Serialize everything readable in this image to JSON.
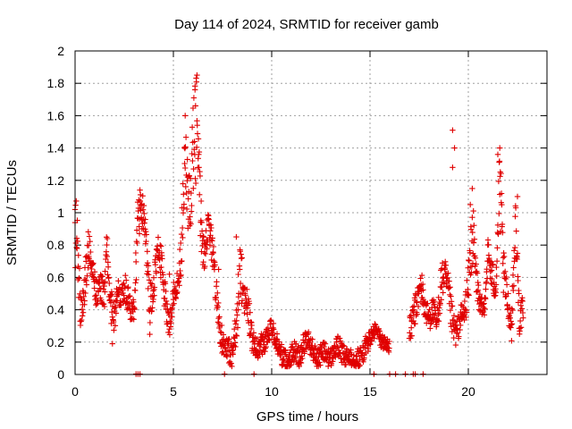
{
  "chart_data": {
    "type": "scatter",
    "title": "Day 114 of 2024, SRMTID for receiver gamb",
    "xlabel": "GPS time / hours",
    "ylabel": "SRMTID / TECUs",
    "xlim": [
      0,
      24
    ],
    "ylim": [
      0,
      2
    ],
    "x_ticks": [
      0,
      5,
      10,
      15,
      20
    ],
    "x_tick_labels": [
      "0",
      "5",
      "10",
      "15",
      "20"
    ],
    "y_ticks": [
      0,
      0.2,
      0.4,
      0.6,
      0.8,
      1,
      1.2,
      1.4,
      1.6,
      1.8,
      2
    ],
    "y_tick_labels": [
      "0",
      "0.2",
      "0.4",
      "0.6",
      "0.8",
      "1",
      "1.2",
      "1.4",
      "1.6",
      "1.8",
      "2"
    ],
    "grid": true,
    "marker": "+",
    "color": "#e00000",
    "series": [
      {
        "name": "SRMTID",
        "envelope": [
          [
            0.0,
            0.9,
            0.15
          ],
          [
            0.1,
            0.85,
            0.12
          ],
          [
            0.3,
            0.35,
            0.08
          ],
          [
            0.5,
            0.55,
            0.08
          ],
          [
            0.7,
            0.82,
            0.06
          ],
          [
            0.9,
            0.62,
            0.06
          ],
          [
            1.1,
            0.5,
            0.07
          ],
          [
            1.3,
            0.55,
            0.06
          ],
          [
            1.5,
            0.48,
            0.06
          ],
          [
            1.6,
            0.8,
            0.08
          ],
          [
            1.8,
            0.42,
            0.07
          ],
          [
            2.0,
            0.38,
            0.07
          ],
          [
            2.2,
            0.5,
            0.06
          ],
          [
            2.5,
            0.55,
            0.06
          ],
          [
            2.8,
            0.42,
            0.05
          ],
          [
            3.0,
            0.4,
            0.04
          ],
          [
            3.2,
            0.95,
            0.12
          ],
          [
            3.4,
            1.05,
            0.06
          ],
          [
            3.6,
            0.85,
            0.07
          ],
          [
            3.8,
            0.4,
            0.1
          ],
          [
            4.0,
            0.55,
            0.06
          ],
          [
            4.2,
            0.75,
            0.07
          ],
          [
            4.4,
            0.7,
            0.07
          ],
          [
            4.6,
            0.45,
            0.06
          ],
          [
            4.8,
            0.3,
            0.05
          ],
          [
            5.0,
            0.5,
            0.05
          ],
          [
            5.2,
            0.55,
            0.05
          ],
          [
            5.4,
            0.75,
            0.08
          ],
          [
            5.6,
            1.35,
            0.15
          ],
          [
            5.8,
            1.0,
            0.15
          ],
          [
            6.0,
            1.3,
            0.25
          ],
          [
            6.2,
            1.55,
            0.2
          ],
          [
            6.4,
            0.9,
            0.12
          ],
          [
            6.6,
            0.75,
            0.07
          ],
          [
            6.8,
            0.95,
            0.05
          ],
          [
            7.0,
            0.75,
            0.08
          ],
          [
            7.2,
            0.5,
            0.07
          ],
          [
            7.4,
            0.25,
            0.06
          ],
          [
            7.6,
            0.15,
            0.05
          ],
          [
            7.8,
            0.15,
            0.05
          ],
          [
            8.0,
            0.12,
            0.05
          ],
          [
            8.2,
            0.3,
            0.07
          ],
          [
            8.4,
            0.65,
            0.12
          ],
          [
            8.6,
            0.48,
            0.06
          ],
          [
            8.8,
            0.4,
            0.07
          ],
          [
            9.0,
            0.22,
            0.06
          ],
          [
            9.2,
            0.15,
            0.04
          ],
          [
            9.4,
            0.18,
            0.04
          ],
          [
            9.6,
            0.2,
            0.05
          ],
          [
            9.8,
            0.25,
            0.04
          ],
          [
            10.0,
            0.28,
            0.04
          ],
          [
            10.2,
            0.22,
            0.04
          ],
          [
            10.4,
            0.15,
            0.04
          ],
          [
            10.6,
            0.1,
            0.04
          ],
          [
            10.8,
            0.08,
            0.04
          ],
          [
            11.0,
            0.12,
            0.04
          ],
          [
            11.2,
            0.15,
            0.04
          ],
          [
            11.4,
            0.1,
            0.04
          ],
          [
            11.6,
            0.18,
            0.05
          ],
          [
            11.8,
            0.22,
            0.04
          ],
          [
            12.0,
            0.18,
            0.04
          ],
          [
            12.2,
            0.12,
            0.04
          ],
          [
            12.4,
            0.1,
            0.04
          ],
          [
            12.6,
            0.15,
            0.04
          ],
          [
            12.8,
            0.12,
            0.04
          ],
          [
            13.0,
            0.1,
            0.04
          ],
          [
            13.2,
            0.15,
            0.04
          ],
          [
            13.4,
            0.18,
            0.04
          ],
          [
            13.6,
            0.12,
            0.04
          ],
          [
            13.8,
            0.1,
            0.04
          ],
          [
            14.0,
            0.12,
            0.04
          ],
          [
            14.2,
            0.1,
            0.04
          ],
          [
            14.4,
            0.1,
            0.04
          ],
          [
            14.6,
            0.12,
            0.04
          ],
          [
            14.8,
            0.18,
            0.04
          ],
          [
            15.3,
            0.28,
            0.03
          ],
          [
            15.6,
            0.2,
            0.03
          ],
          [
            16.0,
            0.18,
            0.03
          ],
          [
            17.0,
            0.25,
            0.06
          ],
          [
            17.2,
            0.35,
            0.06
          ],
          [
            17.4,
            0.45,
            0.06
          ],
          [
            17.6,
            0.55,
            0.07
          ],
          [
            17.8,
            0.4,
            0.05
          ],
          [
            18.0,
            0.35,
            0.05
          ],
          [
            18.2,
            0.4,
            0.05
          ],
          [
            18.4,
            0.3,
            0.05
          ],
          [
            18.6,
            0.55,
            0.08
          ],
          [
            18.8,
            0.62,
            0.06
          ],
          [
            19.0,
            0.5,
            0.07
          ],
          [
            19.2,
            0.3,
            0.07
          ],
          [
            19.4,
            0.25,
            0.05
          ],
          [
            19.6,
            0.35,
            0.05
          ],
          [
            19.8,
            0.38,
            0.05
          ],
          [
            20.0,
            0.55,
            0.08
          ],
          [
            20.2,
            0.9,
            0.15
          ],
          [
            20.4,
            0.6,
            0.07
          ],
          [
            20.6,
            0.42,
            0.04
          ],
          [
            20.8,
            0.4,
            0.04
          ],
          [
            21.0,
            0.75,
            0.06
          ],
          [
            21.2,
            0.6,
            0.07
          ],
          [
            21.4,
            0.55,
            0.06
          ],
          [
            21.6,
            1.2,
            0.15
          ],
          [
            21.8,
            0.6,
            0.1
          ],
          [
            22.0,
            0.45,
            0.06
          ],
          [
            22.2,
            0.3,
            0.06
          ],
          [
            22.4,
            0.95,
            0.1
          ],
          [
            22.6,
            0.35,
            0.07
          ],
          [
            22.8,
            0.4,
            0.05
          ]
        ],
        "spikes": [
          [
            0.0,
            1.02
          ],
          [
            3.3,
            1.14
          ],
          [
            5.6,
            1.6
          ],
          [
            6.2,
            1.85
          ],
          [
            6.1,
            1.76
          ],
          [
            7.3,
            0.65
          ],
          [
            8.2,
            0.85
          ],
          [
            19.2,
            1.51
          ],
          [
            19.3,
            1.4
          ],
          [
            19.2,
            1.28
          ],
          [
            20.2,
            1.15
          ],
          [
            21.6,
            1.4
          ],
          [
            21.5,
            1.36
          ],
          [
            22.5,
            1.1
          ],
          [
            20.1,
            1.05
          ],
          [
            1.9,
            0.19
          ],
          [
            3.4,
            0.9
          ],
          [
            4.8,
            0.62
          ]
        ],
        "zero_points": [
          3.1,
          3.2,
          3.3,
          7.6,
          9.1,
          15.2,
          16.0,
          16.3,
          16.8,
          17.2,
          17.3,
          17.7
        ]
      }
    ]
  }
}
